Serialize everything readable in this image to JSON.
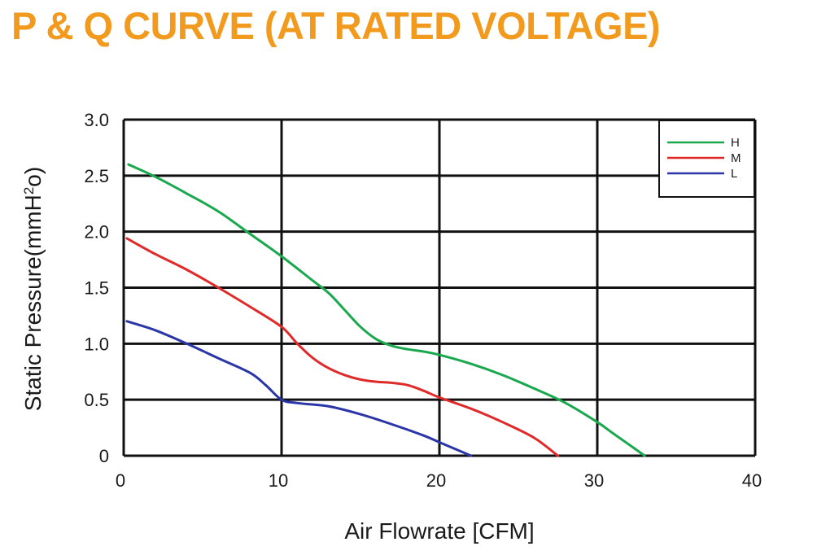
{
  "title": "P & Q CURVE (AT RATED VOLTAGE)",
  "chart_data": {
    "type": "line",
    "xlabel": "Air  Flowrate   [CFM]",
    "ylabel_main": "Static Pressure(mmH",
    "ylabel_sup": "2",
    "ylabel_end": "o)",
    "xlim": [
      0,
      40
    ],
    "ylim": [
      0,
      3.0
    ],
    "x_ticks": [
      0,
      10,
      20,
      30,
      40
    ],
    "x_tick_labels": [
      "0",
      "10",
      "20",
      "30",
      "40"
    ],
    "y_ticks": [
      0,
      0.5,
      1.0,
      1.5,
      2.0,
      2.5,
      3.0
    ],
    "y_tick_labels": [
      "0",
      "0.5",
      "1.0",
      "1.5",
      "2.0",
      "2.5",
      "3.0"
    ],
    "grid": true,
    "legend_position": "top-right",
    "series": [
      {
        "name": "H",
        "color": "#1aa84e",
        "points": [
          [
            0.3,
            2.6
          ],
          [
            2,
            2.49
          ],
          [
            4,
            2.34
          ],
          [
            6,
            2.18
          ],
          [
            8,
            1.98
          ],
          [
            10,
            1.78
          ],
          [
            12,
            1.56
          ],
          [
            13,
            1.45
          ],
          [
            14,
            1.3
          ],
          [
            15,
            1.15
          ],
          [
            16,
            1.04
          ],
          [
            17,
            0.98
          ],
          [
            18,
            0.95
          ],
          [
            19,
            0.93
          ],
          [
            20,
            0.9
          ],
          [
            22,
            0.82
          ],
          [
            24,
            0.72
          ],
          [
            26,
            0.6
          ],
          [
            28,
            0.47
          ],
          [
            30,
            0.3
          ],
          [
            31,
            0.2
          ],
          [
            32,
            0.1
          ],
          [
            33,
            0.0
          ]
        ]
      },
      {
        "name": "M",
        "color": "#e02a2a",
        "points": [
          [
            0.2,
            1.94
          ],
          [
            2,
            1.8
          ],
          [
            4,
            1.66
          ],
          [
            6,
            1.5
          ],
          [
            8,
            1.33
          ],
          [
            10,
            1.15
          ],
          [
            11,
            1.0
          ],
          [
            12,
            0.87
          ],
          [
            13,
            0.78
          ],
          [
            14,
            0.72
          ],
          [
            15,
            0.68
          ],
          [
            16,
            0.66
          ],
          [
            17,
            0.65
          ],
          [
            18,
            0.63
          ],
          [
            19,
            0.58
          ],
          [
            20,
            0.52
          ],
          [
            22,
            0.42
          ],
          [
            24,
            0.3
          ],
          [
            26,
            0.16
          ],
          [
            27.5,
            0.0
          ]
        ]
      },
      {
        "name": "L",
        "color": "#2a35a8",
        "points": [
          [
            0.2,
            1.2
          ],
          [
            2,
            1.12
          ],
          [
            4,
            1.0
          ],
          [
            6,
            0.87
          ],
          [
            8,
            0.74
          ],
          [
            9,
            0.63
          ],
          [
            10,
            0.5
          ],
          [
            11,
            0.47
          ],
          [
            13,
            0.44
          ],
          [
            15,
            0.37
          ],
          [
            17,
            0.28
          ],
          [
            19,
            0.18
          ],
          [
            20,
            0.12
          ],
          [
            21,
            0.06
          ],
          [
            22,
            0.0
          ]
        ]
      }
    ]
  }
}
